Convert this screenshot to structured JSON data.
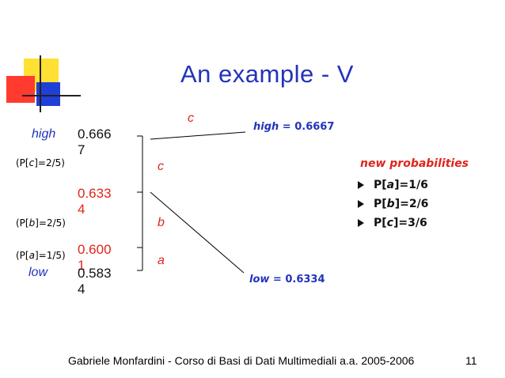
{
  "title": "An example - V",
  "range": {
    "high_label": "high",
    "low_label": "low",
    "interval_labels": [
      {
        "open": "(P[",
        "sym": "c",
        "close": "]=2/5)"
      },
      {
        "open": "(P[",
        "sym": "b",
        "close": "]=2/5)"
      },
      {
        "open": "(P[",
        "sym": "a",
        "close": "]=1/5)"
      }
    ],
    "values": {
      "top": "0.6667",
      "mid_upper": "0.6334",
      "mid_lower": "0.6001",
      "bottom": "0.5834"
    },
    "symbols": {
      "top_c": "c",
      "c": "c",
      "b": "b",
      "a": "a"
    }
  },
  "result": {
    "high": {
      "label": "high",
      "value": " = 0.6667"
    },
    "low": {
      "label": "low",
      "value": " = 0.6334"
    }
  },
  "new_probabilities": {
    "title": "new probabilities",
    "items": [
      {
        "open": "P[",
        "sym": "a",
        "close": "]=1/6"
      },
      {
        "open": "P[",
        "sym": "b",
        "close": "]=2/6"
      },
      {
        "open": "P[",
        "sym": "c",
        "close": "]=3/6"
      }
    ]
  },
  "footer": {
    "text": "Gabriele Monfardini - Corso di Basi di Dati Multimediali  a.a. 2005-2006",
    "page_number": "11"
  }
}
